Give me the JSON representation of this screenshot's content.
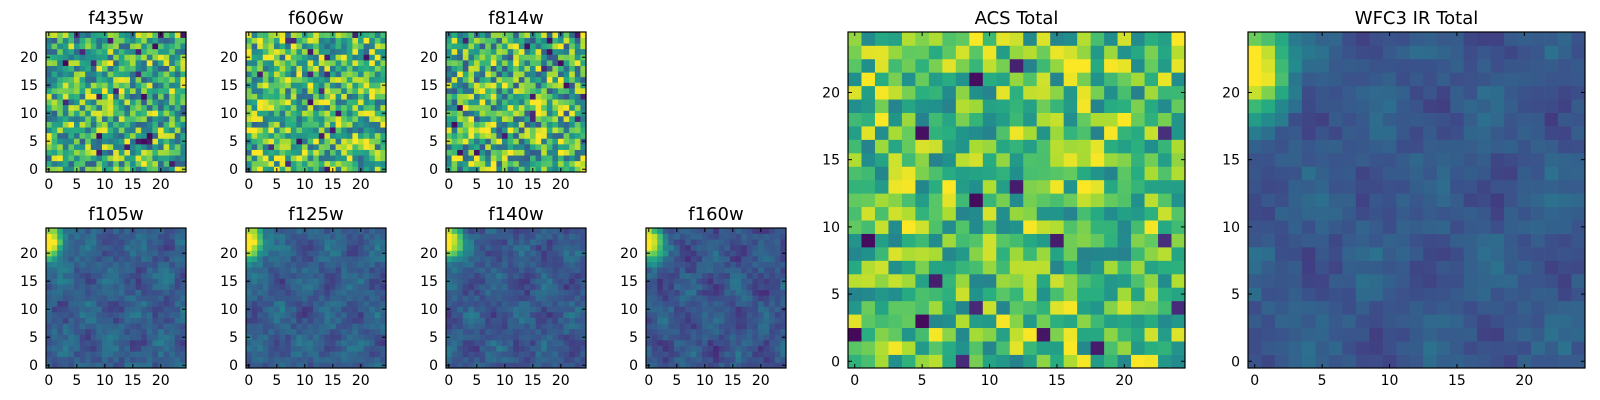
{
  "chart_data": [
    {
      "type": "heatmap",
      "title": "f435w",
      "xticks": [
        0,
        5,
        10,
        15,
        20
      ],
      "yticks": [
        0,
        5,
        10,
        15,
        20
      ],
      "xlim": [
        -0.5,
        24.5
      ],
      "ylim": [
        -0.5,
        24.5
      ],
      "grid": false,
      "colormap": "viridis",
      "grid_size": [
        25,
        25
      ],
      "pattern": "high-noise",
      "mean": 0.65,
      "spread": 0.35
    },
    {
      "type": "heatmap",
      "title": "f606w",
      "xticks": [
        0,
        5,
        10,
        15,
        20
      ],
      "yticks": [
        0,
        5,
        10,
        15,
        20
      ],
      "xlim": [
        -0.5,
        24.5
      ],
      "ylim": [
        -0.5,
        24.5
      ],
      "grid": false,
      "colormap": "viridis",
      "grid_size": [
        25,
        25
      ],
      "pattern": "high-noise",
      "mean": 0.68,
      "spread": 0.35
    },
    {
      "type": "heatmap",
      "title": "f814w",
      "xticks": [
        0,
        5,
        10,
        15,
        20
      ],
      "yticks": [
        0,
        5,
        10,
        15,
        20
      ],
      "xlim": [
        -0.5,
        24.5
      ],
      "ylim": [
        -0.5,
        24.5
      ],
      "grid": false,
      "colormap": "viridis",
      "grid_size": [
        25,
        25
      ],
      "pattern": "high-noise",
      "mean": 0.65,
      "spread": 0.38
    },
    {
      "type": "heatmap",
      "title": "f105w",
      "xticks": [
        0,
        5,
        10,
        15,
        20
      ],
      "yticks": [
        0,
        5,
        10,
        15,
        20
      ],
      "xlim": [
        -0.5,
        24.5
      ],
      "ylim": [
        -0.5,
        24.5
      ],
      "grid": false,
      "colormap": "viridis",
      "grid_size": [
        25,
        25
      ],
      "pattern": "corner-source",
      "source_corner": "top-left",
      "mean": 0.3,
      "spread": 0.14
    },
    {
      "type": "heatmap",
      "title": "f125w",
      "xticks": [
        0,
        5,
        10,
        15,
        20
      ],
      "yticks": [
        0,
        5,
        10,
        15,
        20
      ],
      "xlim": [
        -0.5,
        24.5
      ],
      "ylim": [
        -0.5,
        24.5
      ],
      "grid": false,
      "colormap": "viridis",
      "grid_size": [
        25,
        25
      ],
      "pattern": "corner-source",
      "source_corner": "top-left",
      "mean": 0.3,
      "spread": 0.14
    },
    {
      "type": "heatmap",
      "title": "f140w",
      "xticks": [
        0,
        5,
        10,
        15,
        20
      ],
      "yticks": [
        0,
        5,
        10,
        15,
        20
      ],
      "xlim": [
        -0.5,
        24.5
      ],
      "ylim": [
        -0.5,
        24.5
      ],
      "grid": false,
      "colormap": "viridis",
      "grid_size": [
        25,
        25
      ],
      "pattern": "corner-source",
      "source_corner": "top-left",
      "mean": 0.28,
      "spread": 0.14
    },
    {
      "type": "heatmap",
      "title": "f160w",
      "xticks": [
        0,
        5,
        10,
        15,
        20
      ],
      "yticks": [
        0,
        5,
        10,
        15,
        20
      ],
      "xlim": [
        -0.5,
        24.5
      ],
      "ylim": [
        -0.5,
        24.5
      ],
      "grid": false,
      "colormap": "viridis",
      "grid_size": [
        25,
        25
      ],
      "pattern": "corner-source",
      "source_corner": "top-left",
      "mean": 0.27,
      "spread": 0.14
    },
    {
      "type": "heatmap",
      "title": "ACS Total",
      "xticks": [
        0,
        5,
        10,
        15,
        20
      ],
      "yticks": [
        0,
        5,
        10,
        15,
        20
      ],
      "xlim": [
        -0.5,
        24.5
      ],
      "ylim": [
        -0.5,
        24.5
      ],
      "grid": false,
      "colormap": "viridis",
      "grid_size": [
        25,
        25
      ],
      "pattern": "high-noise",
      "mean": 0.72,
      "spread": 0.28
    },
    {
      "type": "heatmap",
      "title": "WFC3 IR Total",
      "xticks": [
        0,
        5,
        10,
        15,
        20
      ],
      "yticks": [
        0,
        5,
        10,
        15,
        20
      ],
      "xlim": [
        -0.5,
        24.5
      ],
      "ylim": [
        -0.5,
        24.5
      ],
      "grid": false,
      "colormap": "viridis",
      "grid_size": [
        25,
        25
      ],
      "pattern": "corner-source",
      "source_corner": "top-left",
      "mean": 0.28,
      "spread": 0.1
    }
  ]
}
